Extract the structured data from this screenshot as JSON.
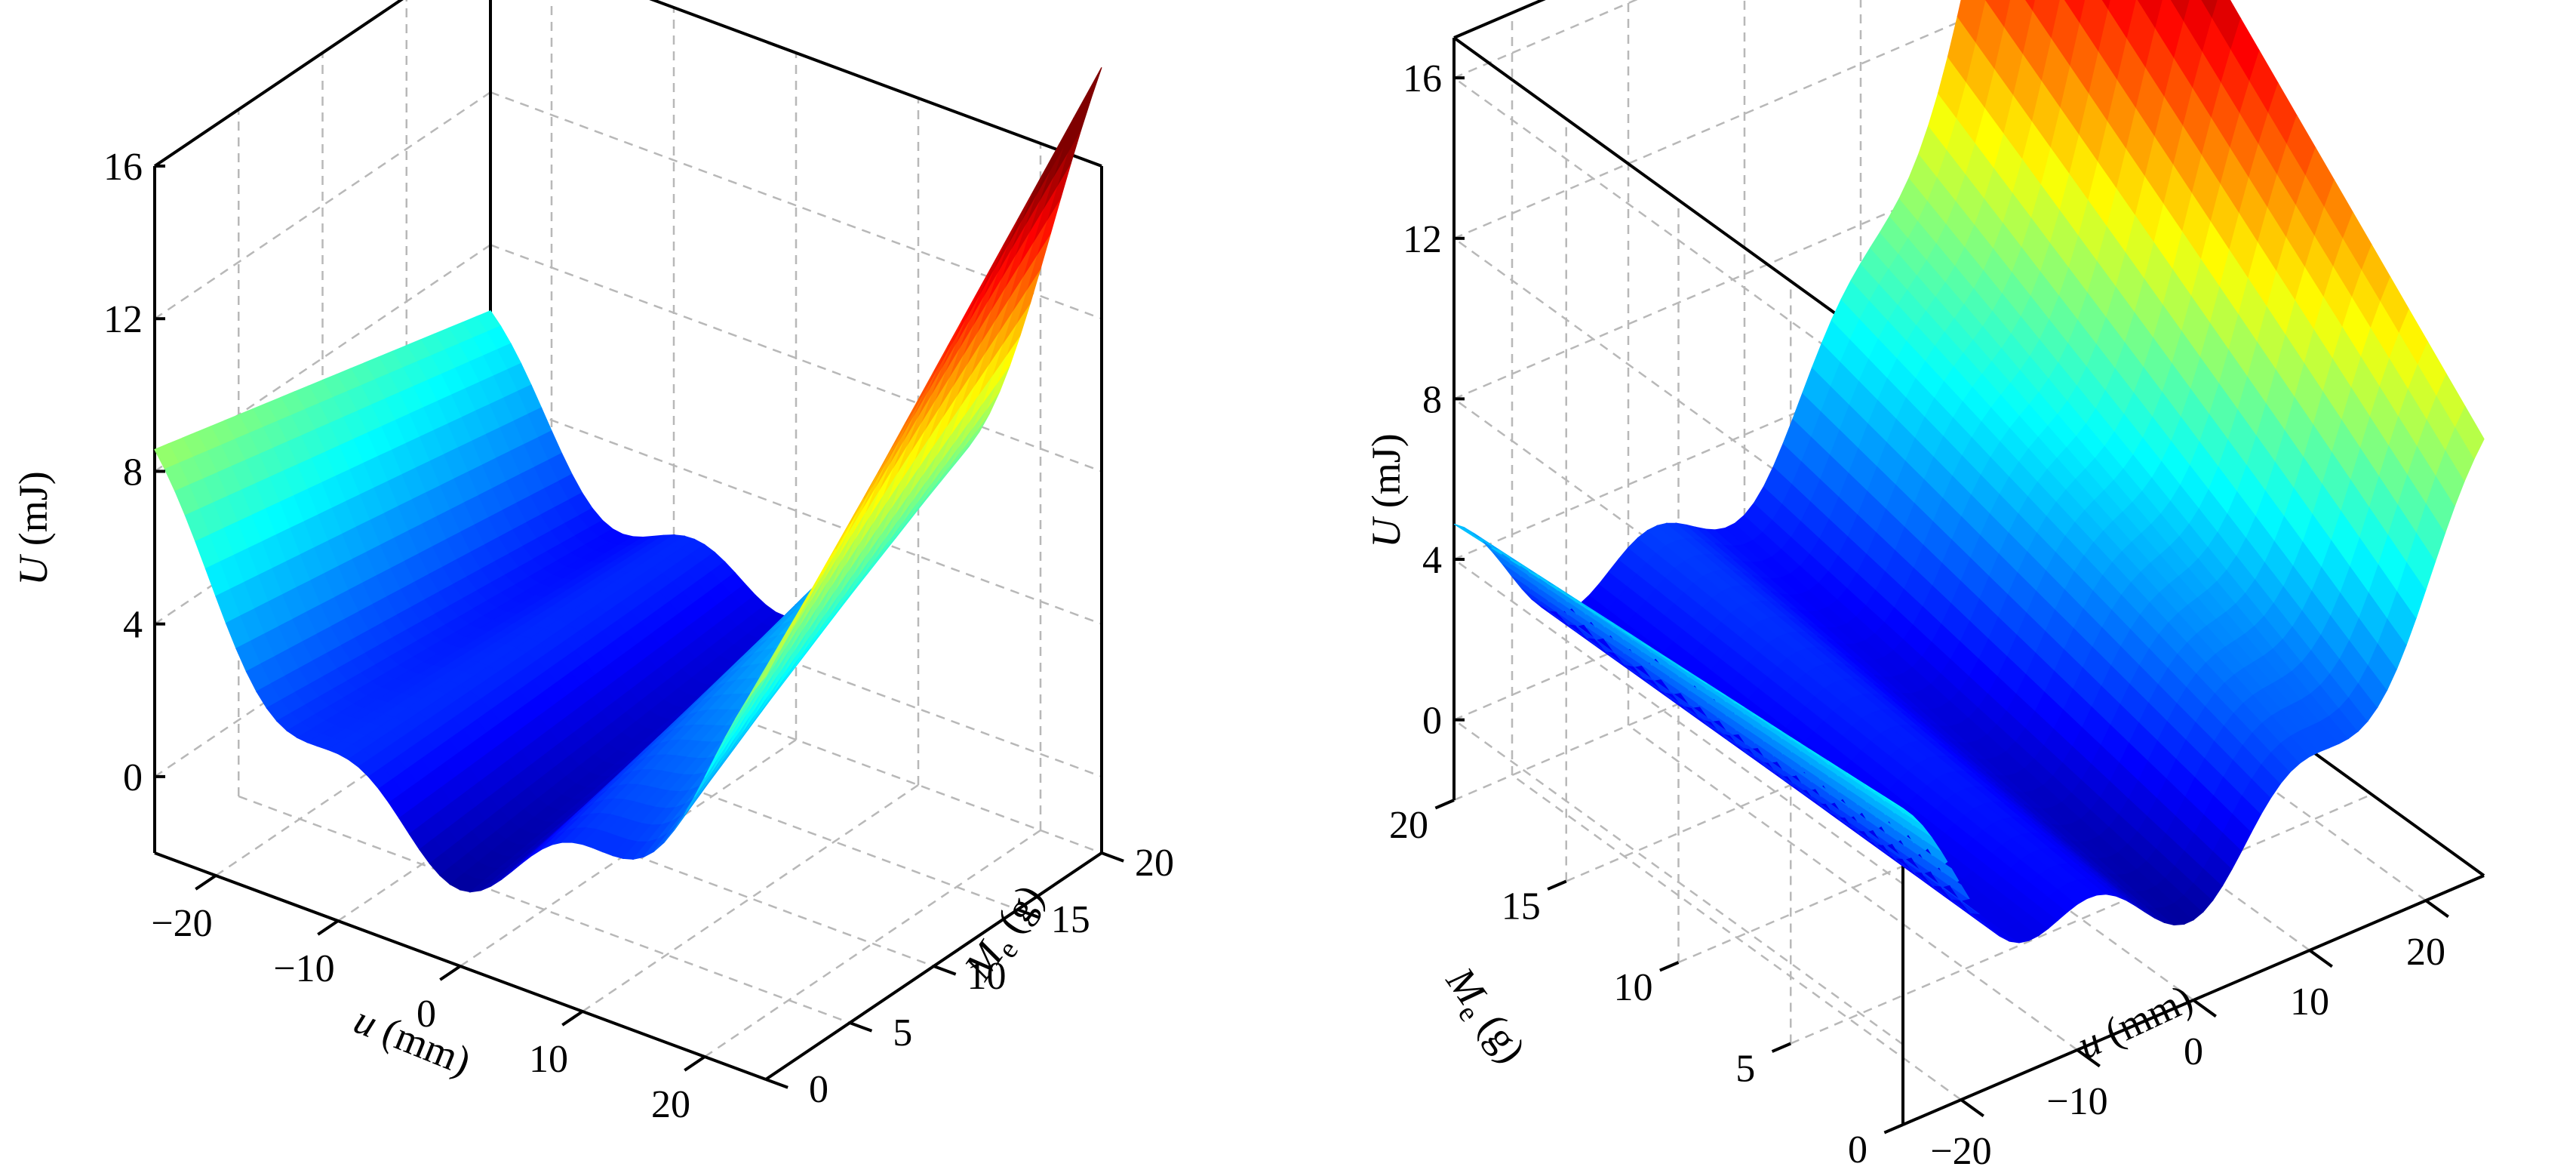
{
  "chart_data": [
    {
      "type": "surface",
      "panel": "left",
      "x": {
        "label": "u (mm)",
        "variable": "u",
        "unit": "(mm)",
        "range": [
          -25,
          25
        ],
        "ticks": [
          -20,
          -10,
          0,
          10,
          20
        ],
        "tick_labels": [
          "−20",
          "−10",
          "0",
          "10",
          "20"
        ]
      },
      "y": {
        "label": "Me (g)",
        "variable": "M",
        "subscript": "e",
        "unit": "(g)",
        "range": [
          0,
          20
        ],
        "ticks": [
          0,
          5,
          10,
          15,
          20
        ],
        "tick_labels": [
          "0",
          "5",
          "10",
          "15",
          "20"
        ]
      },
      "z": {
        "label": "U (mJ)",
        "variable": "U",
        "unit": "(mJ)",
        "range": [
          -2,
          16
        ],
        "ticks": [
          0,
          4,
          8,
          12,
          16
        ],
        "tick_labels": [
          "0",
          "4",
          "8",
          "12",
          "16"
        ]
      },
      "surface_samples": [
        {
          "Me": 0,
          "U_at_u_-25": 8.6,
          "U_at_u_0": 0.0,
          "U_at_u_25": 8.6,
          "note_local_minima_u": [
            -16,
            0,
            16
          ]
        },
        {
          "Me": 20,
          "U_at_u_-25": 8.6,
          "U_at_u_0": 2.5,
          "U_at_u_25": 15.5
        }
      ],
      "colormap": "jet",
      "grid": true
    },
    {
      "type": "surface",
      "panel": "right",
      "x": {
        "label": "u (mm)",
        "variable": "u",
        "unit": "(mm)",
        "range": [
          -25,
          25
        ],
        "ticks": [
          -20,
          -10,
          0,
          10,
          20
        ],
        "tick_labels": [
          "−20",
          "−10",
          "0",
          "10",
          "20"
        ]
      },
      "y": {
        "label": "Me (g)",
        "variable": "M",
        "subscript": "e",
        "unit": "(g)",
        "range": [
          0,
          20
        ],
        "ticks": [
          0,
          5,
          10,
          15,
          20
        ],
        "tick_labels": [
          "0",
          "5",
          "10",
          "15",
          "20"
        ]
      },
      "z": {
        "label": "U (mJ)",
        "variable": "U",
        "unit": "(mJ)",
        "range": [
          -2,
          17
        ],
        "ticks": [
          0,
          4,
          8,
          12,
          16
        ],
        "tick_labels": [
          "0",
          "4",
          "8",
          "12",
          "16"
        ]
      },
      "surface_samples": [
        {
          "Me": 0,
          "U_at_u_-25": 3.8,
          "U_at_u_0": 0.0,
          "U_at_u_25": 7.0
        },
        {
          "Me": 20,
          "U_at_u_-25": 3.8,
          "U_at_u_0": 4.0,
          "U_at_u_25": 16.5
        }
      ],
      "colormap": "jet",
      "grid": true
    }
  ]
}
